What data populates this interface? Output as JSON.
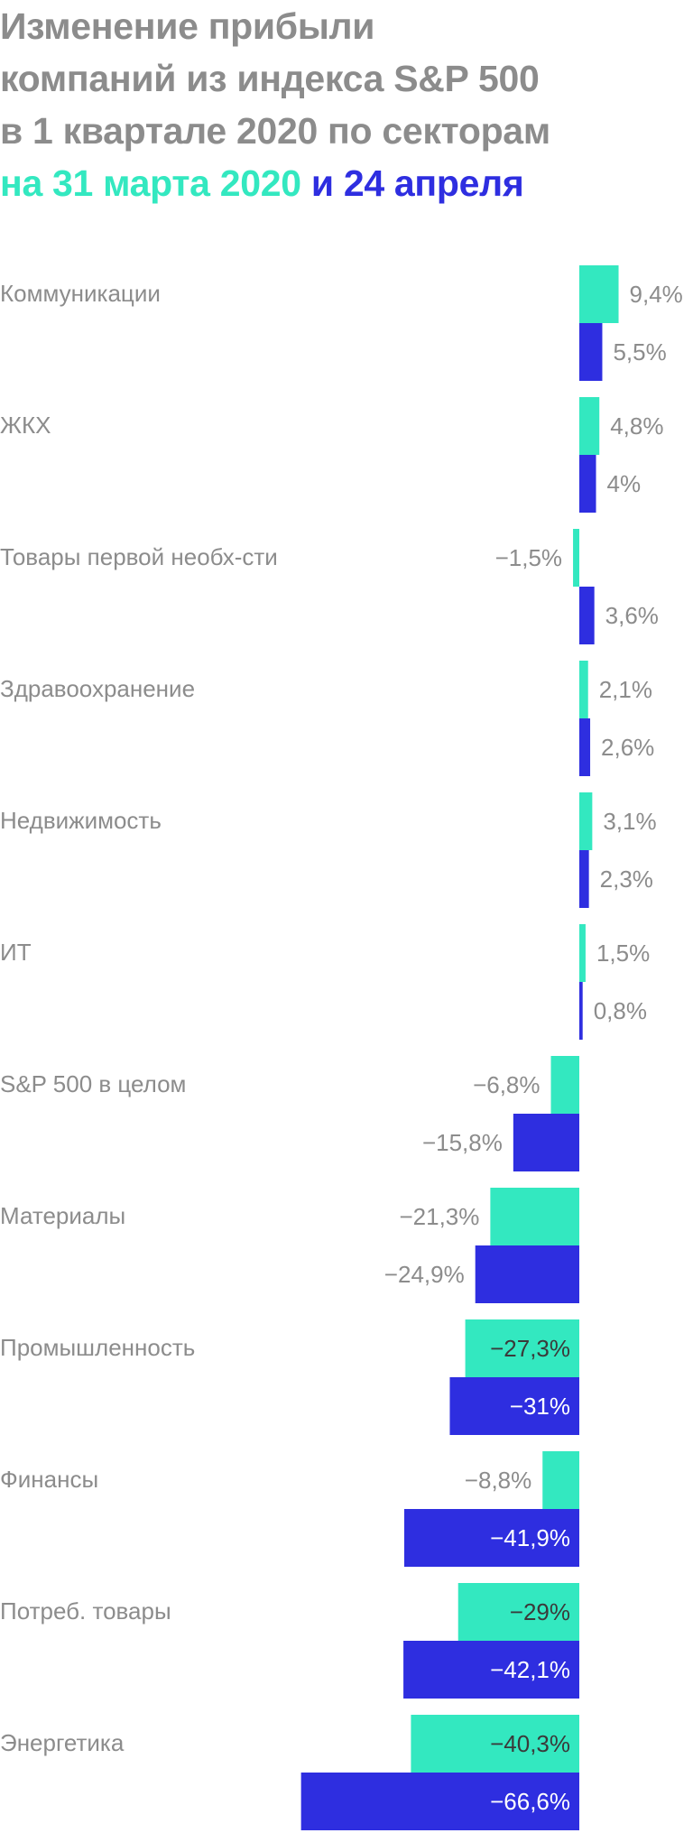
{
  "title": {
    "line1": "Изменение прибыли",
    "line2": "компаний из индекса S&P 500",
    "line3": "в 1 квартале 2020 по секторам",
    "line4_part1": "на 31 марта 2020",
    "line4_part2": " и ",
    "line4_part3": "24 апреля",
    "color_title": "#8c8c8c",
    "color_series1": "#33e8c0",
    "color_series2": "#2e2ee0"
  },
  "chart_data": {
    "type": "bar",
    "orientation": "horizontal",
    "title": "Изменение прибыли компаний из индекса S&P 500 в 1 квартале 2020 по секторам",
    "categories": [
      "Коммуникации",
      "ЖКХ",
      "Товары первой необх-сти",
      "Здравоохранение",
      "Недвижимость",
      "ИТ",
      "S&P 500 в целом",
      "Материалы",
      "Промышленность",
      "Финансы",
      "Потреб. товары",
      "Энергетика"
    ],
    "series": [
      {
        "name": "на 31 марта 2020",
        "color": "#33e8c0",
        "values": [
          9.4,
          4.8,
          -1.5,
          2.1,
          3.1,
          1.5,
          -6.8,
          -21.3,
          -27.3,
          -8.8,
          -29,
          -40.3
        ],
        "labels": [
          "9,4%",
          "4,8%",
          "−1,5%",
          "2,1%",
          "3,1%",
          "1,5%",
          "−6,8%",
          "−21,3%",
          "−27,3%",
          "−8,8%",
          "−29%",
          "−40,3%"
        ]
      },
      {
        "name": "24 апреля",
        "color": "#2e2ee0",
        "values": [
          5.5,
          4,
          3.6,
          2.6,
          2.3,
          0.8,
          -15.8,
          -24.9,
          -31,
          -41.9,
          -42.1,
          -66.6
        ],
        "labels": [
          "5,5%",
          "4%",
          "3,6%",
          "2,6%",
          "2,3%",
          "0,8%",
          "−15,8%",
          "−24,9%",
          "−31%",
          "−41,9%",
          "−42,1%",
          "−66,6%"
        ]
      }
    ],
    "xlim": [
      -66.6,
      9.4
    ],
    "grid": false,
    "legend": "title"
  }
}
